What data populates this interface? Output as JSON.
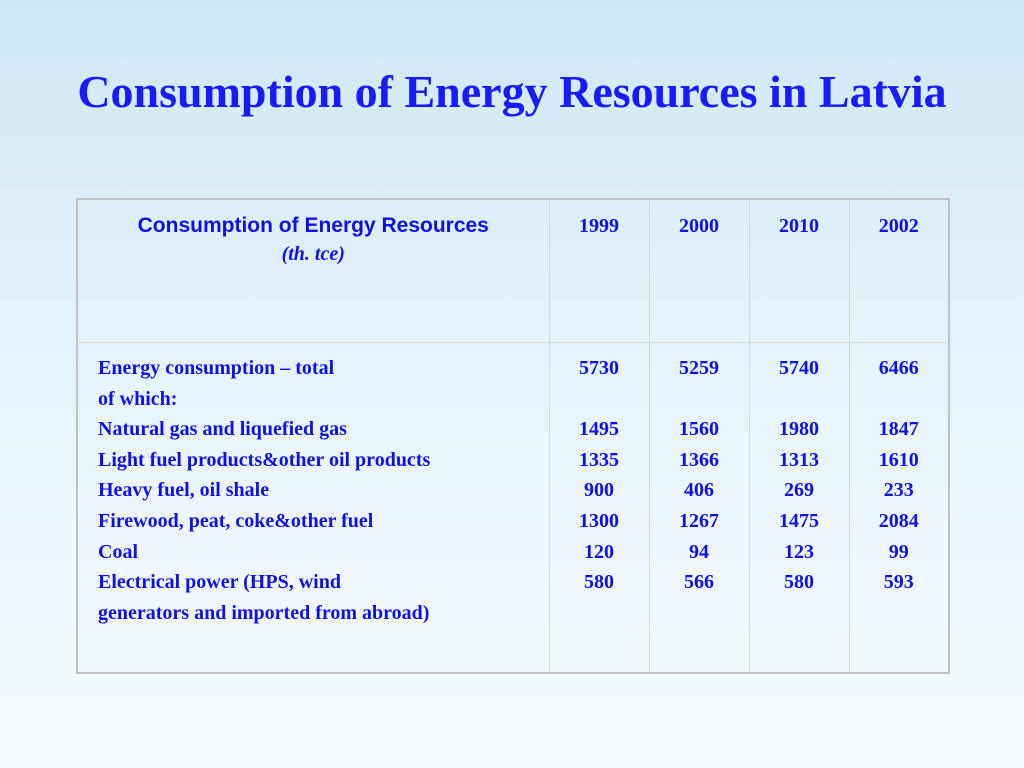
{
  "title": "Consumption of Energy Resources in Latvia",
  "table": {
    "header_label": "Consumption of Energy Resources",
    "header_unit": "(th. tce)",
    "years": [
      "1999",
      "2000",
      "2010",
      "2002"
    ],
    "rows": [
      {
        "label": "Energy consumption – total",
        "values": [
          "5730",
          "5259",
          "5740",
          "6466"
        ]
      },
      {
        "label": "of which:",
        "values": [
          "",
          "",
          "",
          ""
        ]
      },
      {
        "label": "Natural gas and liquefied gas",
        "values": [
          "1495",
          "1560",
          "1980",
          "1847"
        ]
      },
      {
        "label": "Light fuel products&other oil products",
        "values": [
          "1335",
          "1366",
          "1313",
          "1610"
        ]
      },
      {
        "label": "Heavy fuel, oil shale",
        "values": [
          "900",
          "406",
          "269",
          "233"
        ]
      },
      {
        "label": "Firewood, peat, coke&other fuel",
        "values": [
          "1300",
          "1267",
          "1475",
          "2084"
        ]
      },
      {
        "label": "Coal",
        "values": [
          "120",
          "94",
          "123",
          "99"
        ]
      },
      {
        "label": "Electrical power (HPS, wind",
        "values": [
          "580",
          "566",
          "580",
          "593"
        ]
      },
      {
        "label": "generators and imported from abroad)",
        "values": [
          "",
          "",
          "",
          ""
        ]
      }
    ]
  }
}
